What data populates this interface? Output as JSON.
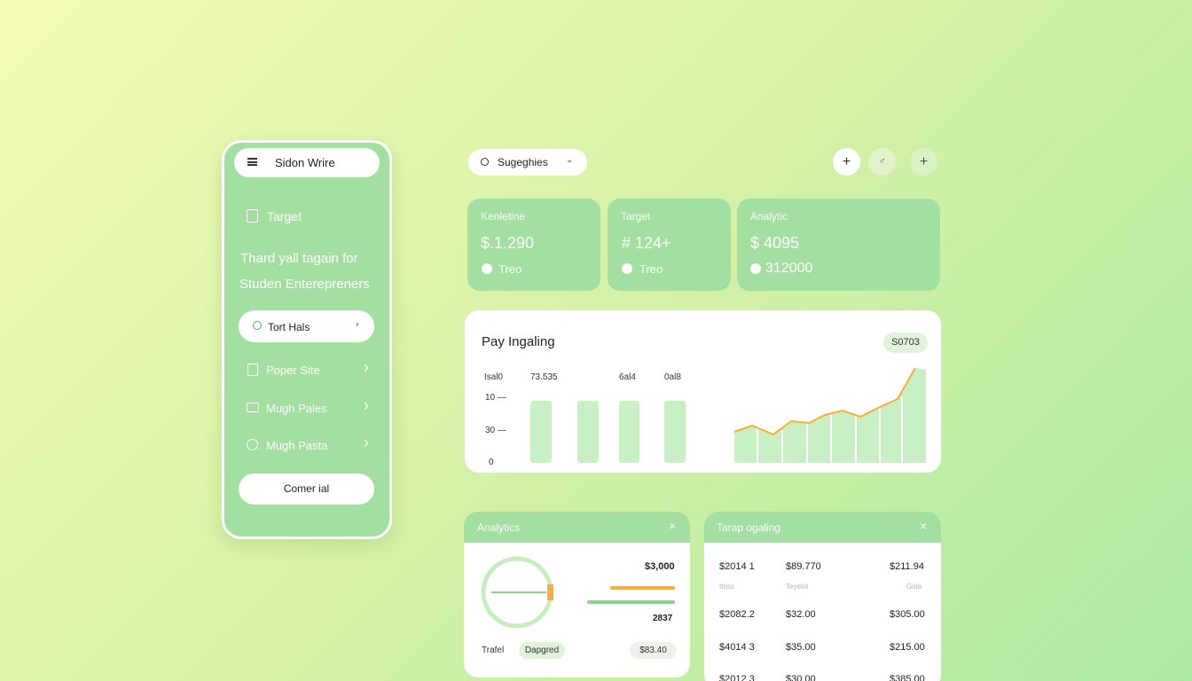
{
  "sidebar": {
    "title": "Sidon Wrire",
    "nav_label": "Target",
    "tagline": [
      "Thard yall tagain for",
      "Studen Enterepreners"
    ],
    "search": "Tort Hals",
    "menu": [
      "Poper Site",
      "Mugh Pales",
      "Mugh Pasta"
    ],
    "button": "Comer ial"
  },
  "topbar": {
    "search": "Sugeghies"
  },
  "stats": [
    {
      "label": "Kenletine",
      "value": "$.1.290",
      "sub": "Treo"
    },
    {
      "label": "Target",
      "value": "# 124+",
      "sub": "Treo"
    },
    {
      "label": "Analytic",
      "value": "$ 4095",
      "sub": "312000"
    }
  ],
  "pay_panel": {
    "title": "Pay Ingaling",
    "badge": "S0703",
    "headers": [
      "Isal0",
      "73.535",
      "6al4",
      "0al8"
    ],
    "axis_labels": [
      "10 —",
      "30 —",
      "0"
    ]
  },
  "analytics": {
    "title": "Analytics",
    "amount": "$3,000",
    "count": "2837",
    "footer": [
      "Trafel",
      "Dapgred",
      "$83.40"
    ]
  },
  "table_panel": {
    "title": "Tarap ogaling",
    "rows": [
      [
        "$2014 1",
        "$89.770",
        "$211.94"
      ],
      [
        "Itnss",
        "Teyelot",
        "Gola"
      ],
      [
        "$2082.2",
        "$32.00",
        "$305.00"
      ],
      [
        "$4014 3",
        "$35.00",
        "$215.00"
      ],
      [
        "$2012 3",
        "$30.00",
        "$385.00"
      ]
    ]
  }
}
